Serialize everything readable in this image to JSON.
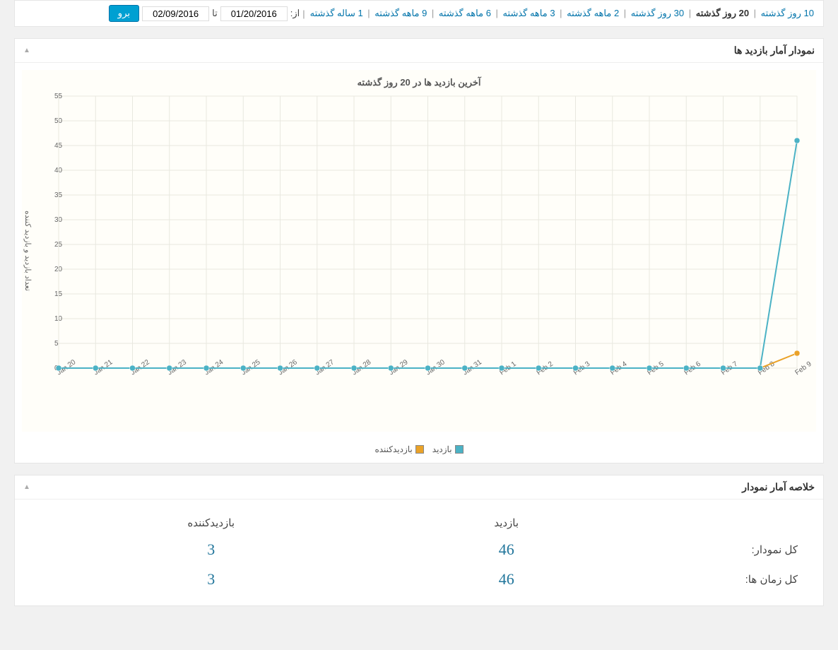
{
  "filter": {
    "ranges": [
      {
        "label": "10 روز گذشته",
        "active": false
      },
      {
        "label": "20 روز گذشته",
        "active": true
      },
      {
        "label": "30 روز گذشته",
        "active": false
      },
      {
        "label": "2 ماهه گذشته",
        "active": false
      },
      {
        "label": "3 ماهه گذشته",
        "active": false
      },
      {
        "label": "6 ماهه گذشته",
        "active": false
      },
      {
        "label": "9 ماهه گذشته",
        "active": false
      },
      {
        "label": "1 ساله گذشته",
        "active": false
      }
    ],
    "from_label": "از:",
    "to_label": "تا",
    "from_value": "01/20/2016",
    "to_value": "02/09/2016",
    "go_label": "برو"
  },
  "chart_panel": {
    "header": "نمودار آمار بازدید ها",
    "title": "آخرین بازدید ها در 20 روز گذشته",
    "yaxis_label": "تعداد بازدید و بازدید کننده",
    "x_labels": [
      "Jan 20",
      "Jan 21",
      "Jan 22",
      "Jan 23",
      "Jan 24",
      "Jan 25",
      "Jan 26",
      "Jan 27",
      "Jan 28",
      "Jan 29",
      "Jan 30",
      "Jan 31",
      "Feb 1",
      "Feb 2",
      "Feb 3",
      "Feb 4",
      "Feb 5",
      "Feb 6",
      "Feb 7",
      "Feb 8",
      "Feb 9"
    ],
    "y_ticks": [
      0,
      5,
      10,
      15,
      20,
      25,
      30,
      35,
      40,
      45,
      50,
      55
    ],
    "ylim": [
      0,
      55
    ],
    "grid_color": "#e8e8e0",
    "background_color": "#fffef9",
    "axis_font_size": 10,
    "series": [
      {
        "name": "بازدید",
        "color": "#4bb2c5",
        "data": [
          0,
          0,
          0,
          0,
          0,
          0,
          0,
          0,
          0,
          0,
          0,
          0,
          0,
          0,
          0,
          0,
          0,
          0,
          0,
          0,
          46
        ]
      },
      {
        "name": "بازدیدکننده",
        "color": "#eaa228",
        "data": [
          0,
          0,
          0,
          0,
          0,
          0,
          0,
          0,
          0,
          0,
          0,
          0,
          0,
          0,
          0,
          0,
          0,
          0,
          0,
          0,
          3
        ]
      }
    ],
    "marker_size": 4,
    "line_width": 2
  },
  "summary_panel": {
    "header": "خلاصه آمار نمودار",
    "columns": [
      "بازدید",
      "بازدیدکننده"
    ],
    "rows": [
      {
        "label": "کل نمودار:",
        "values": [
          "46",
          "3"
        ]
      },
      {
        "label": "کل زمان ها:",
        "values": [
          "46",
          "3"
        ]
      }
    ]
  }
}
